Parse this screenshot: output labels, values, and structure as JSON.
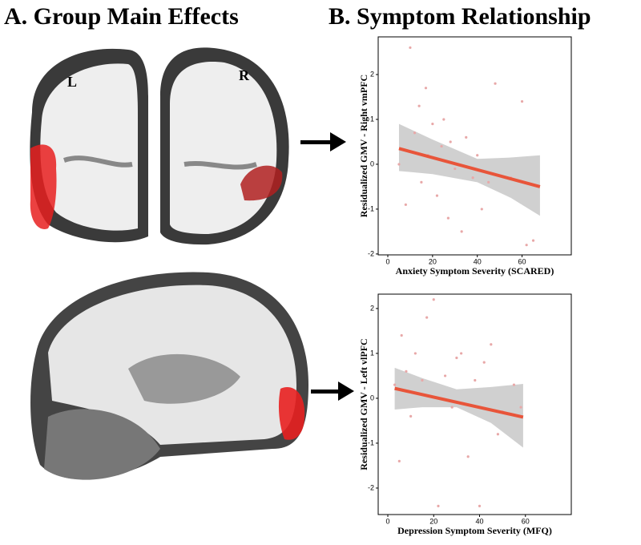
{
  "figure": {
    "panel_a_title": "A. Group Main Effects",
    "panel_b_title": "B. Symptom Relationship",
    "left_label": "L",
    "right_label": "R"
  },
  "chart_data": [
    {
      "type": "scatter",
      "x_label": "Anxiety Symptom Severity (SCARED)",
      "y_label": "Residualized GMV - Right vmPFC",
      "xlim": [
        -4.3,
        82
      ],
      "ylim": [
        -2.02,
        2.84
      ],
      "xticks": [
        0,
        20,
        40,
        60
      ],
      "yticks": [
        -2,
        -1,
        0,
        1,
        2
      ],
      "point_color": "#e8a8a8",
      "x": [
        5,
        8,
        10,
        12,
        14,
        15,
        17,
        18,
        20,
        22,
        24,
        25,
        27,
        28,
        30,
        33,
        35,
        38,
        40,
        42,
        45,
        48,
        55,
        60,
        62,
        65
      ],
      "y": [
        0,
        -0.9,
        2.6,
        0.7,
        1.3,
        -0.4,
        1.7,
        0.2,
        0.9,
        -0.7,
        0.4,
        1.0,
        -1.2,
        0.5,
        -0.1,
        -1.5,
        0.6,
        -0.3,
        0.2,
        -1.0,
        -0.4,
        1.8,
        -0.3,
        1.4,
        -1.8,
        -1.7
      ],
      "fit": {
        "color": "#e8553a",
        "x": [
          5,
          68
        ],
        "y": [
          0.35,
          -0.5
        ]
      },
      "ci": {
        "color": "#c8c8c8",
        "x": [
          5,
          20,
          40,
          55,
          68
        ],
        "lower": [
          -0.15,
          -0.22,
          -0.4,
          -0.75,
          -1.15
        ],
        "upper": [
          0.9,
          0.55,
          0.12,
          0.15,
          0.2
        ]
      }
    },
    {
      "type": "scatter",
      "x_label": "Depression Symptom Severity (MFQ)",
      "y_label": "Residualized GMV - Left vlPFC",
      "xlim": [
        -4.2,
        80
      ],
      "ylim": [
        -2.59,
        2.32
      ],
      "xticks": [
        0,
        20,
        40,
        60
      ],
      "yticks": [
        -2,
        -1,
        0,
        1,
        2
      ],
      "point_color": "#e8a8a8",
      "x": [
        3,
        5,
        6,
        8,
        10,
        12,
        15,
        17,
        20,
        22,
        25,
        28,
        30,
        32,
        35,
        38,
        40,
        42,
        45,
        48,
        50,
        55,
        58
      ],
      "y": [
        0.3,
        -1.4,
        1.4,
        0.6,
        -0.4,
        1.0,
        0.4,
        1.8,
        2.2,
        -2.4,
        0.5,
        -0.2,
        0.9,
        1.0,
        -1.3,
        0.4,
        -2.4,
        0.8,
        1.2,
        -0.8,
        -0.3,
        0.3,
        -0.2
      ],
      "fit": {
        "color": "#e8553a",
        "x": [
          3,
          59
        ],
        "y": [
          0.22,
          -0.42
        ]
      },
      "ci": {
        "color": "#c8c8c8",
        "x": [
          3,
          15,
          30,
          45,
          59
        ],
        "lower": [
          -0.25,
          -0.2,
          -0.2,
          -0.55,
          -1.1
        ],
        "upper": [
          0.68,
          0.45,
          0.2,
          0.25,
          0.32
        ]
      }
    }
  ]
}
